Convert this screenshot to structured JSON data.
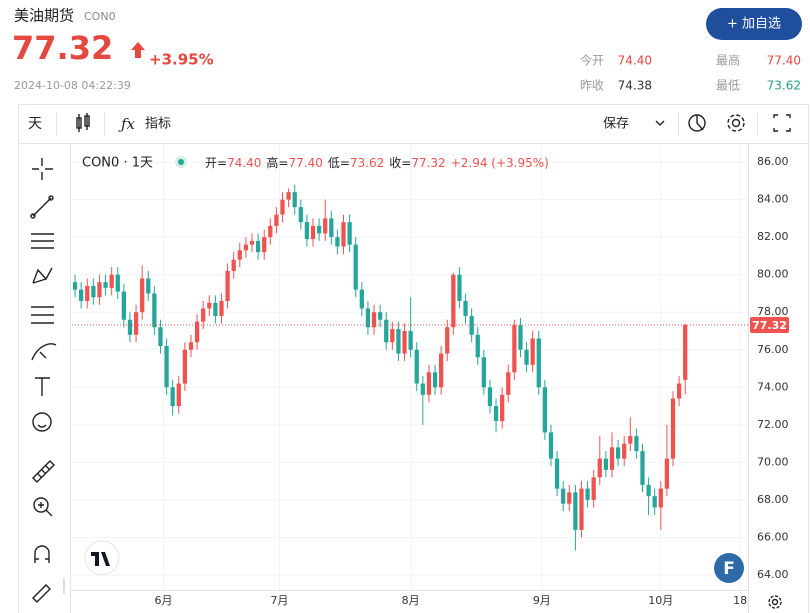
{
  "header": {
    "name": "美油期货",
    "code": "CON0",
    "price": "77.32",
    "change_pct": "+3.95%",
    "time": "2024-10-08 04:22:39",
    "watch_button": "+ 加自选",
    "stats": [
      {
        "label": "今开",
        "value": "74.40"
      },
      {
        "label": "最高",
        "value": "77.40"
      },
      {
        "label": "昨收",
        "value": "74.38"
      },
      {
        "label": "最低",
        "value": "73.62"
      }
    ]
  },
  "toolbar": {
    "interval": "天",
    "indicators": "指标",
    "save": "保存"
  },
  "logo": "F",
  "chart_data": {
    "type": "candlestick",
    "legend": {
      "symbol": "CON0 · 1天",
      "items": [
        {
          "label": "开=",
          "value": "74.40"
        },
        {
          "label": "高=",
          "value": "77.40"
        },
        {
          "label": "低=",
          "value": "73.62"
        },
        {
          "label": "收=",
          "value": "77.32"
        }
      ],
      "change": "+2.94 (+3.95%)"
    },
    "up_color": "#ef5350",
    "down_color": "#26a69a",
    "grid": true,
    "xlim": [
      -0.5,
      109.8
    ],
    "ylim": [
      63.2,
      86.75
    ],
    "xticks": [
      {
        "value": 14.5,
        "label": "6月"
      },
      {
        "value": 33.5,
        "label": "7月"
      },
      {
        "value": 55,
        "label": "8月"
      },
      {
        "value": 76.5,
        "label": "9月"
      },
      {
        "value": 96,
        "label": "10月"
      },
      {
        "value": 109,
        "label": "18"
      }
    ],
    "yticks": [
      {
        "value": 64,
        "label": "64.00"
      },
      {
        "value": 66,
        "label": "66.00"
      },
      {
        "value": 68,
        "label": "68.00"
      },
      {
        "value": 70,
        "label": "70.00"
      },
      {
        "value": 72,
        "label": "72.00"
      },
      {
        "value": 74,
        "label": "74.00"
      },
      {
        "value": 76,
        "label": "76.00"
      },
      {
        "value": 78,
        "label": "78.00"
      },
      {
        "value": 80,
        "label": "80.00"
      },
      {
        "value": 82,
        "label": "82.00"
      },
      {
        "value": 84,
        "label": "84.00"
      },
      {
        "value": 86,
        "label": "86.00"
      }
    ],
    "price_line": {
      "value": 77.32,
      "label": "77.32"
    },
    "candles": [
      [
        79.6,
        80.0,
        78.8,
        79.2
      ],
      [
        79.2,
        79.6,
        78.2,
        78.6
      ],
      [
        78.6,
        79.8,
        78.2,
        79.4
      ],
      [
        79.4,
        79.8,
        78.4,
        78.8
      ],
      [
        78.8,
        80.0,
        78.4,
        79.6
      ],
      [
        79.6,
        80.0,
        78.9,
        79.3
      ],
      [
        79.3,
        80.4,
        78.9,
        80.0
      ],
      [
        80.0,
        80.4,
        78.7,
        79.1
      ],
      [
        79.1,
        79.5,
        77.2,
        77.6
      ],
      [
        77.6,
        78.0,
        76.4,
        76.8
      ],
      [
        76.8,
        78.4,
        76.4,
        78.0
      ],
      [
        78.0,
        80.5,
        77.6,
        79.8
      ],
      [
        79.8,
        80.2,
        78.6,
        79.0
      ],
      [
        79.0,
        79.4,
        76.8,
        77.2
      ],
      [
        77.2,
        77.6,
        75.8,
        76.2
      ],
      [
        76.2,
        76.6,
        73.6,
        74.0
      ],
      [
        74.0,
        74.4,
        72.5,
        73.0
      ],
      [
        73.0,
        74.6,
        72.6,
        74.2
      ],
      [
        74.2,
        76.4,
        73.8,
        76.0
      ],
      [
        76.0,
        76.8,
        75.6,
        76.4
      ],
      [
        76.4,
        77.9,
        76.0,
        77.5
      ],
      [
        77.5,
        78.6,
        77.1,
        78.2
      ],
      [
        78.2,
        78.9,
        77.8,
        78.5
      ],
      [
        78.5,
        78.9,
        77.4,
        77.8
      ],
      [
        77.8,
        79.0,
        77.4,
        78.6
      ],
      [
        78.6,
        80.6,
        78.2,
        80.2
      ],
      [
        80.2,
        81.2,
        79.8,
        80.8
      ],
      [
        80.8,
        81.7,
        80.4,
        81.3
      ],
      [
        81.3,
        82.0,
        80.9,
        81.6
      ],
      [
        81.6,
        82.2,
        81.2,
        81.8
      ],
      [
        81.8,
        82.2,
        80.8,
        81.2
      ],
      [
        81.2,
        82.4,
        80.8,
        82.0
      ],
      [
        82.0,
        83.0,
        81.6,
        82.6
      ],
      [
        82.6,
        83.6,
        82.2,
        83.2
      ],
      [
        83.2,
        84.4,
        82.8,
        84.0
      ],
      [
        84.0,
        84.6,
        83.6,
        84.4
      ],
      [
        84.4,
        84.8,
        83.2,
        83.6
      ],
      [
        83.6,
        84.0,
        82.4,
        82.8
      ],
      [
        82.8,
        83.2,
        81.5,
        81.9
      ],
      [
        81.9,
        83.0,
        81.5,
        82.6
      ],
      [
        82.6,
        83.0,
        81.8,
        82.2
      ],
      [
        82.2,
        84.0,
        81.8,
        83.0
      ],
      [
        83.0,
        83.4,
        81.6,
        82.0
      ],
      [
        82.0,
        82.4,
        81.1,
        81.5
      ],
      [
        81.5,
        83.2,
        81.1,
        82.8
      ],
      [
        82.8,
        83.2,
        81.2,
        81.6
      ],
      [
        81.6,
        82.0,
        78.8,
        79.2
      ],
      [
        79.2,
        79.6,
        77.8,
        78.2
      ],
      [
        78.2,
        78.6,
        76.8,
        77.2
      ],
      [
        77.2,
        78.4,
        76.8,
        78.0
      ],
      [
        78.0,
        78.4,
        77.2,
        77.6
      ],
      [
        77.6,
        78.0,
        76.0,
        76.4
      ],
      [
        76.4,
        77.5,
        76.0,
        77.1
      ],
      [
        77.1,
        77.5,
        75.4,
        75.8
      ],
      [
        75.8,
        77.4,
        75.4,
        77.0
      ],
      [
        77.0,
        78.8,
        75.6,
        76.0
      ],
      [
        76.0,
        76.4,
        73.8,
        74.2
      ],
      [
        74.2,
        74.6,
        72.0,
        73.6
      ],
      [
        73.6,
        75.2,
        73.2,
        74.8
      ],
      [
        74.8,
        75.2,
        73.6,
        74.0
      ],
      [
        74.0,
        76.2,
        73.6,
        75.8
      ],
      [
        75.8,
        77.6,
        75.4,
        77.2
      ],
      [
        77.2,
        80.1,
        76.8,
        80.0
      ],
      [
        80.0,
        80.4,
        78.2,
        78.6
      ],
      [
        78.6,
        79.0,
        77.4,
        77.8
      ],
      [
        77.8,
        78.2,
        76.4,
        76.8
      ],
      [
        76.8,
        77.2,
        75.2,
        75.6
      ],
      [
        75.6,
        76.0,
        73.6,
        74.0
      ],
      [
        74.0,
        74.4,
        72.6,
        73.0
      ],
      [
        73.0,
        73.4,
        71.6,
        72.2
      ],
      [
        72.2,
        74.0,
        71.8,
        73.6
      ],
      [
        73.6,
        75.2,
        73.2,
        74.8
      ],
      [
        74.8,
        77.6,
        74.4,
        77.3
      ],
      [
        77.3,
        77.7,
        75.6,
        76.0
      ],
      [
        76.0,
        76.4,
        74.8,
        75.2
      ],
      [
        75.2,
        77.0,
        74.8,
        76.6
      ],
      [
        76.6,
        77.0,
        73.6,
        74.0
      ],
      [
        74.0,
        74.4,
        71.2,
        71.6
      ],
      [
        71.6,
        72.0,
        69.8,
        70.2
      ],
      [
        70.2,
        70.6,
        68.2,
        68.6
      ],
      [
        68.6,
        69.0,
        67.4,
        67.8
      ],
      [
        67.8,
        68.8,
        67.4,
        68.4
      ],
      [
        68.4,
        68.8,
        65.3,
        66.4
      ],
      [
        66.4,
        69.0,
        66.0,
        68.6
      ],
      [
        68.6,
        69.0,
        67.6,
        68.0
      ],
      [
        68.0,
        69.6,
        67.6,
        69.2
      ],
      [
        69.2,
        71.4,
        68.8,
        70.2
      ],
      [
        70.2,
        70.6,
        69.2,
        69.6
      ],
      [
        69.6,
        71.6,
        69.2,
        70.8
      ],
      [
        70.8,
        71.2,
        69.8,
        70.2
      ],
      [
        70.2,
        71.4,
        69.8,
        71.0
      ],
      [
        71.0,
        72.4,
        70.6,
        71.4
      ],
      [
        71.4,
        71.8,
        70.2,
        70.6
      ],
      [
        70.6,
        71.0,
        68.4,
        68.8
      ],
      [
        68.8,
        69.2,
        67.2,
        68.2
      ],
      [
        68.2,
        68.6,
        67.2,
        67.6
      ],
      [
        67.6,
        69.0,
        66.4,
        68.6
      ],
      [
        68.6,
        72.0,
        68.2,
        70.2
      ],
      [
        70.2,
        73.8,
        69.8,
        73.4
      ],
      [
        73.4,
        74.6,
        73.0,
        74.2
      ],
      [
        74.4,
        77.4,
        73.62,
        77.32
      ]
    ]
  }
}
